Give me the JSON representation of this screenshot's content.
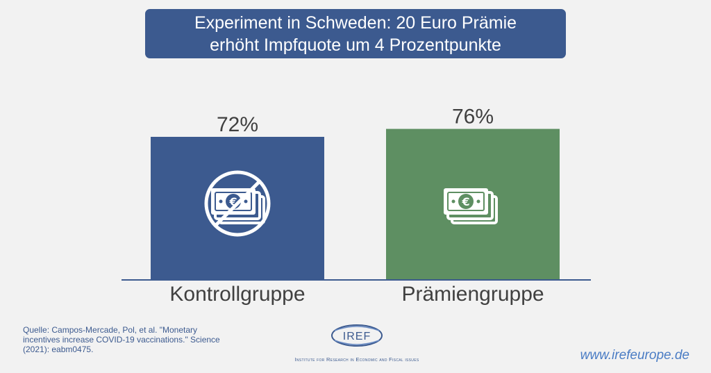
{
  "title": {
    "line1": "Experiment in Schweden: 20 Euro Prämie",
    "line2": "erhöht Impfquote um 4 Prozentpunkte"
  },
  "chart_data": {
    "type": "bar",
    "categories": [
      "Kontrollgruppe",
      "Prämiengruppe"
    ],
    "values": [
      72,
      76
    ],
    "value_labels": [
      "72%",
      "76%"
    ],
    "bar_colors": [
      "#3c5a8f",
      "#5e8f62"
    ],
    "bar_icons": [
      "no-money-icon",
      "money-icon"
    ],
    "title": "",
    "xlabel": "",
    "ylabel": "",
    "grid": false,
    "legend": "none"
  },
  "source": "Quelle: Campos-Mercade, Pol, et al. \"Monetary incentives increase COVID-19 vaccinations.\" Science (2021): eabm0475.",
  "logo": {
    "name": "IREF",
    "subtitle": "Institute for Research in Economic and Fiscal issues"
  },
  "website": "www.irefeurope.de"
}
